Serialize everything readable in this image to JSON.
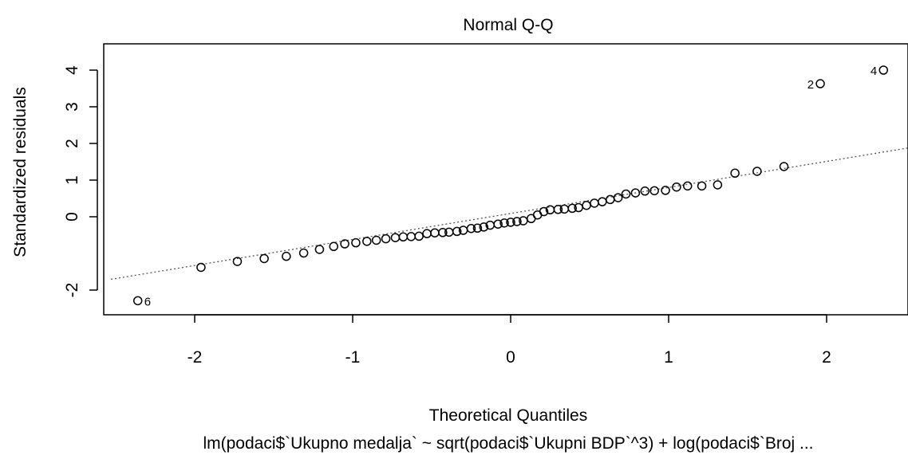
{
  "chart_data": {
    "type": "scatter",
    "title": "Normal Q-Q",
    "xlabel": "Theoretical Quantiles",
    "ylabel": "Standardized residuals",
    "subtitle": "lm(podaci$`Ukupno medalja` ~ sqrt(podaci$`Ukupni BDP`^3) + log(podaci$`Broj ...",
    "xlim": [
      -2.5,
      2.5
    ],
    "ylim": [
      -2.5,
      4.3
    ],
    "x_ticks": [
      "-2",
      "-1",
      "0",
      "1",
      "2"
    ],
    "y_ticks": [
      "-2",
      "0",
      "1",
      "2",
      "3",
      "4"
    ],
    "grid": false,
    "reference_line": {
      "style": "dotted",
      "intercept": 0.09,
      "slope": 0.71
    },
    "point_labels": [
      {
        "label": "6",
        "x": -2.36,
        "y": -2.29
      },
      {
        "label": "2",
        "x": 1.96,
        "y": 3.63
      },
      {
        "label": "4",
        "x": 2.36,
        "y": 4.0
      }
    ],
    "series": [
      {
        "x": [
          -2.36,
          -1.96,
          -1.73,
          -1.56,
          -1.42,
          -1.31,
          -1.21,
          -1.12,
          -1.05,
          -0.98,
          -0.91,
          -0.85,
          -0.79,
          -0.73,
          -0.68,
          -0.63,
          -0.58,
          -0.53,
          -0.48,
          -0.43,
          -0.39,
          -0.34,
          -0.3,
          -0.25,
          -0.21,
          -0.17,
          -0.13,
          -0.08,
          -0.04,
          0.0,
          0.04,
          0.08,
          0.13,
          0.17,
          0.21,
          0.25,
          0.3,
          0.34,
          0.39,
          0.43,
          0.48,
          0.53,
          0.58,
          0.63,
          0.68,
          0.73,
          0.79,
          0.85,
          0.91,
          0.98,
          1.05,
          1.12,
          1.21,
          1.31,
          1.42,
          1.56,
          1.73,
          1.96,
          2.36
        ],
        "y": [
          -2.29,
          -1.38,
          -1.22,
          -1.14,
          -1.08,
          -0.99,
          -0.89,
          -0.81,
          -0.74,
          -0.71,
          -0.67,
          -0.64,
          -0.6,
          -0.57,
          -0.55,
          -0.54,
          -0.53,
          -0.46,
          -0.44,
          -0.43,
          -0.42,
          -0.4,
          -0.37,
          -0.32,
          -0.31,
          -0.28,
          -0.23,
          -0.2,
          -0.17,
          -0.15,
          -0.13,
          -0.11,
          -0.05,
          0.05,
          0.14,
          0.19,
          0.2,
          0.21,
          0.23,
          0.25,
          0.31,
          0.37,
          0.41,
          0.47,
          0.52,
          0.62,
          0.65,
          0.7,
          0.71,
          0.72,
          0.81,
          0.84,
          0.84,
          0.87,
          1.19,
          1.24,
          1.37,
          3.63,
          4.0
        ]
      }
    ]
  }
}
